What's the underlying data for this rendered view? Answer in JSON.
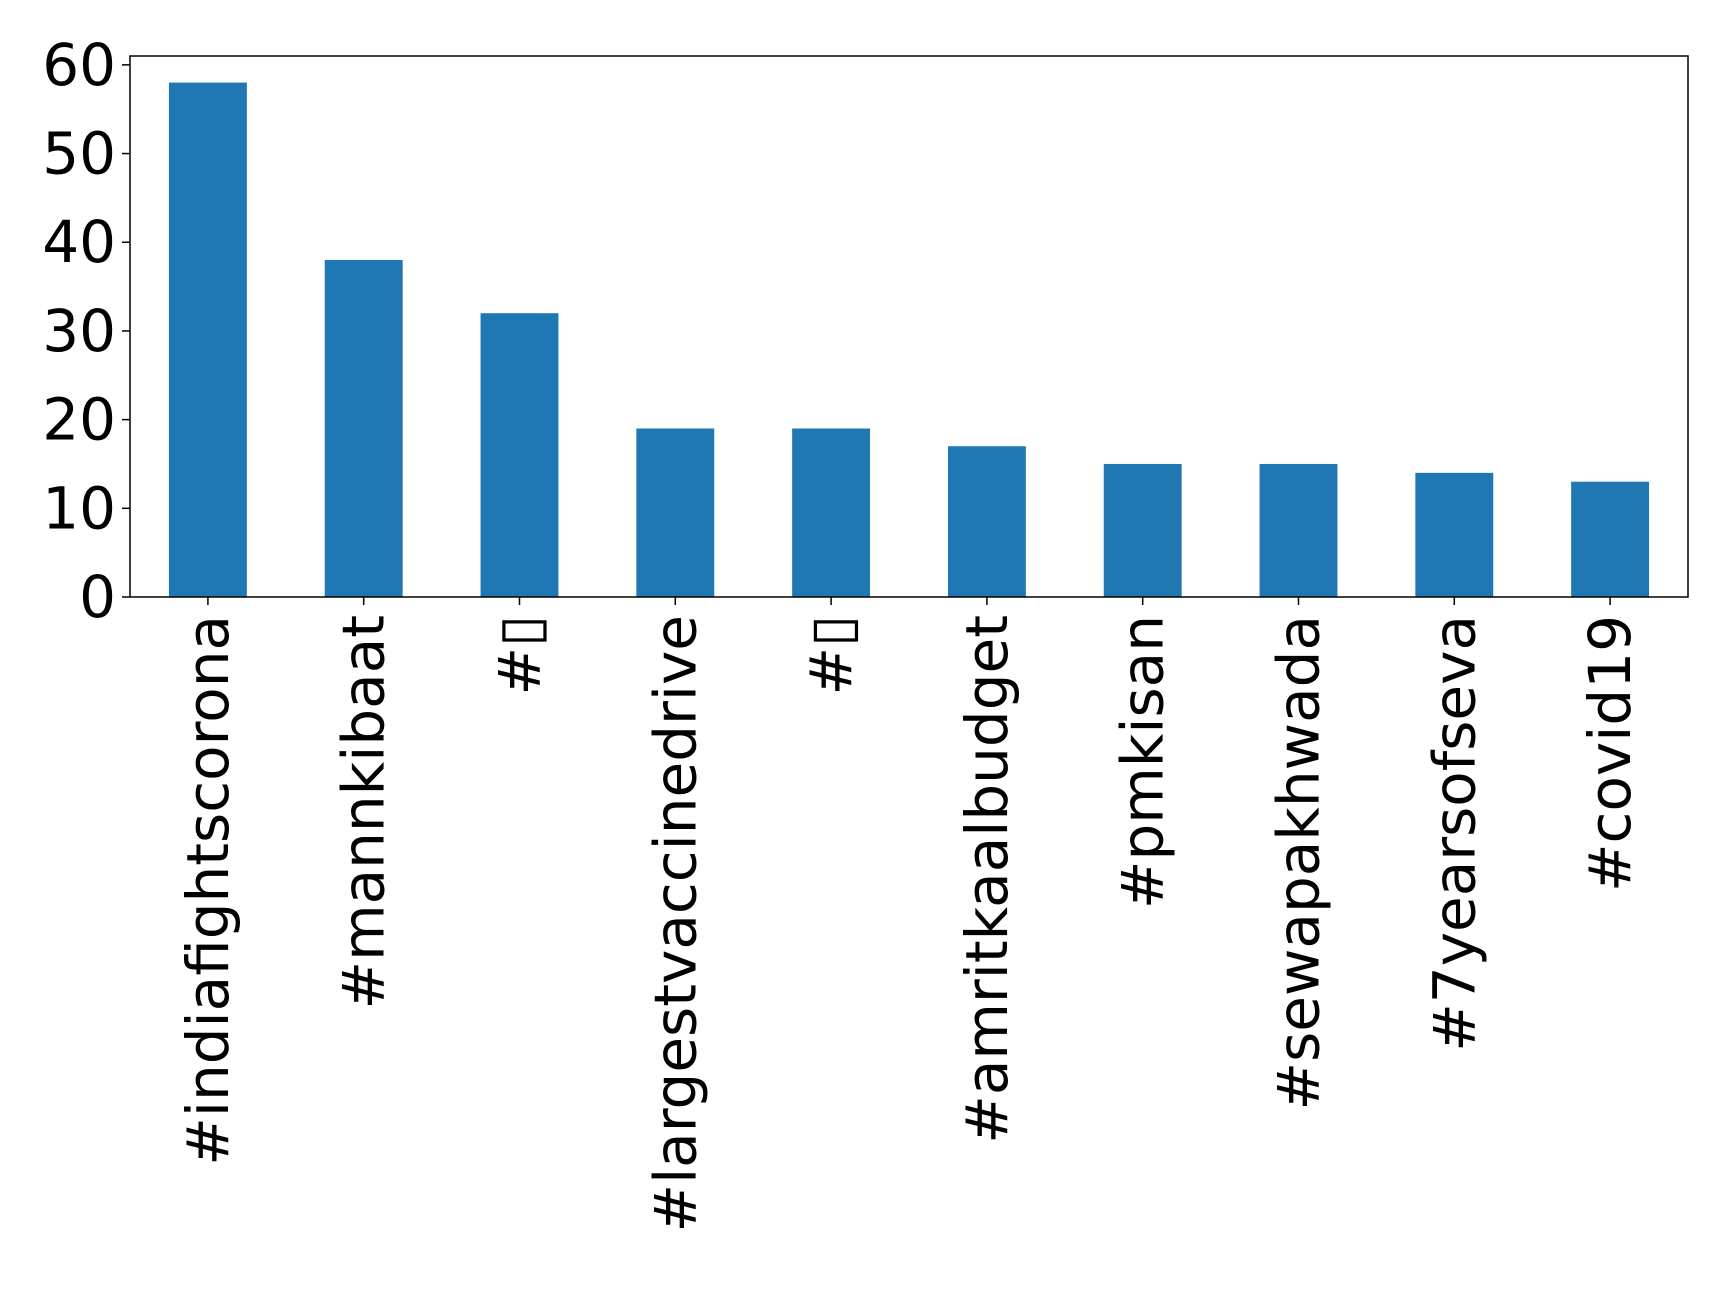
{
  "chart_data": {
    "type": "bar",
    "title": "",
    "xlabel": "",
    "ylabel": "",
    "categories": [
      "#indiafightscorona",
      "#mannkibaat",
      "#▯",
      "#largestvaccinedrive",
      "#▯",
      "#amritkaalbudget",
      "#pmkisan",
      "#sewapakhwada",
      "#7yearsofseva",
      "#covid19"
    ],
    "values": [
      58,
      38,
      32,
      19,
      19,
      17,
      15,
      15,
      14,
      13
    ],
    "ylim": [
      0,
      61
    ],
    "yticks": [
      0,
      10,
      20,
      30,
      40,
      50,
      60
    ],
    "bar_color": "#1f77b4",
    "grid": false,
    "legend": "none"
  }
}
